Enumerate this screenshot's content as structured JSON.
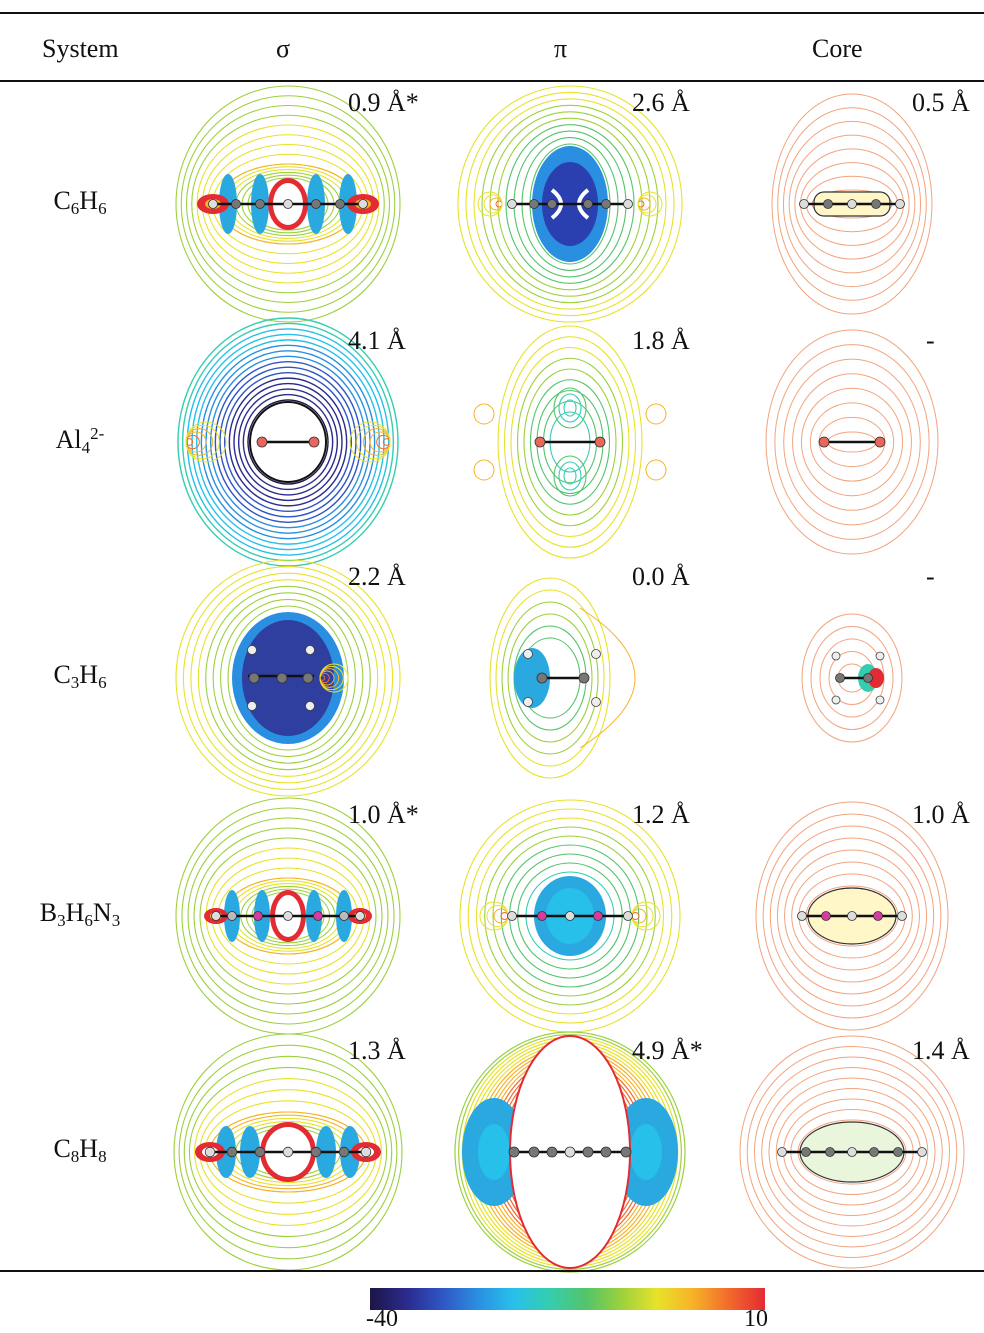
{
  "header": {
    "system": "System",
    "sigma": "σ",
    "pi": "π",
    "core": "Core"
  },
  "rows": [
    {
      "base": "C",
      "n1": "6",
      "h": "H",
      "n2": "6",
      "extra": "",
      "kind": "c6h6",
      "sigma": "0.9 Å*",
      "pi": "2.6 Å",
      "core": "0.5 Å"
    },
    {
      "base": "Al",
      "n1": "4",
      "h": "",
      "n2": "",
      "extra": "2-",
      "kind": "al4",
      "sigma": "4.1 Å",
      "pi": "1.8 Å",
      "core": "-"
    },
    {
      "base": "C",
      "n1": "3",
      "h": "H",
      "n2": "6",
      "extra": "",
      "kind": "c3h6",
      "sigma": "2.2 Å",
      "pi": "0.0 Å",
      "core": "-"
    },
    {
      "base": "B",
      "n1": "3",
      "h": "H",
      "n2": "6",
      "extra": "N3",
      "kind": "b3n3",
      "sigma": "1.0 Å*",
      "pi": "1.2 Å",
      "core": "1.0 Å"
    },
    {
      "base": "C",
      "n1": "8",
      "h": "H",
      "n2": "8",
      "extra": "",
      "kind": "c8h8",
      "sigma": "1.3 Å",
      "pi": "4.9 Å*",
      "core": "1.4 Å"
    }
  ],
  "colorbar": {
    "min": "-40",
    "max": "10",
    "colors": [
      "#1d1645",
      "#2a2a8c",
      "#2f55c4",
      "#2a8fe0",
      "#27c0ea",
      "#35cdb0",
      "#52c46a",
      "#9cd13c",
      "#e8e22a",
      "#f7b228",
      "#f26a2c",
      "#e32b33"
    ]
  }
}
